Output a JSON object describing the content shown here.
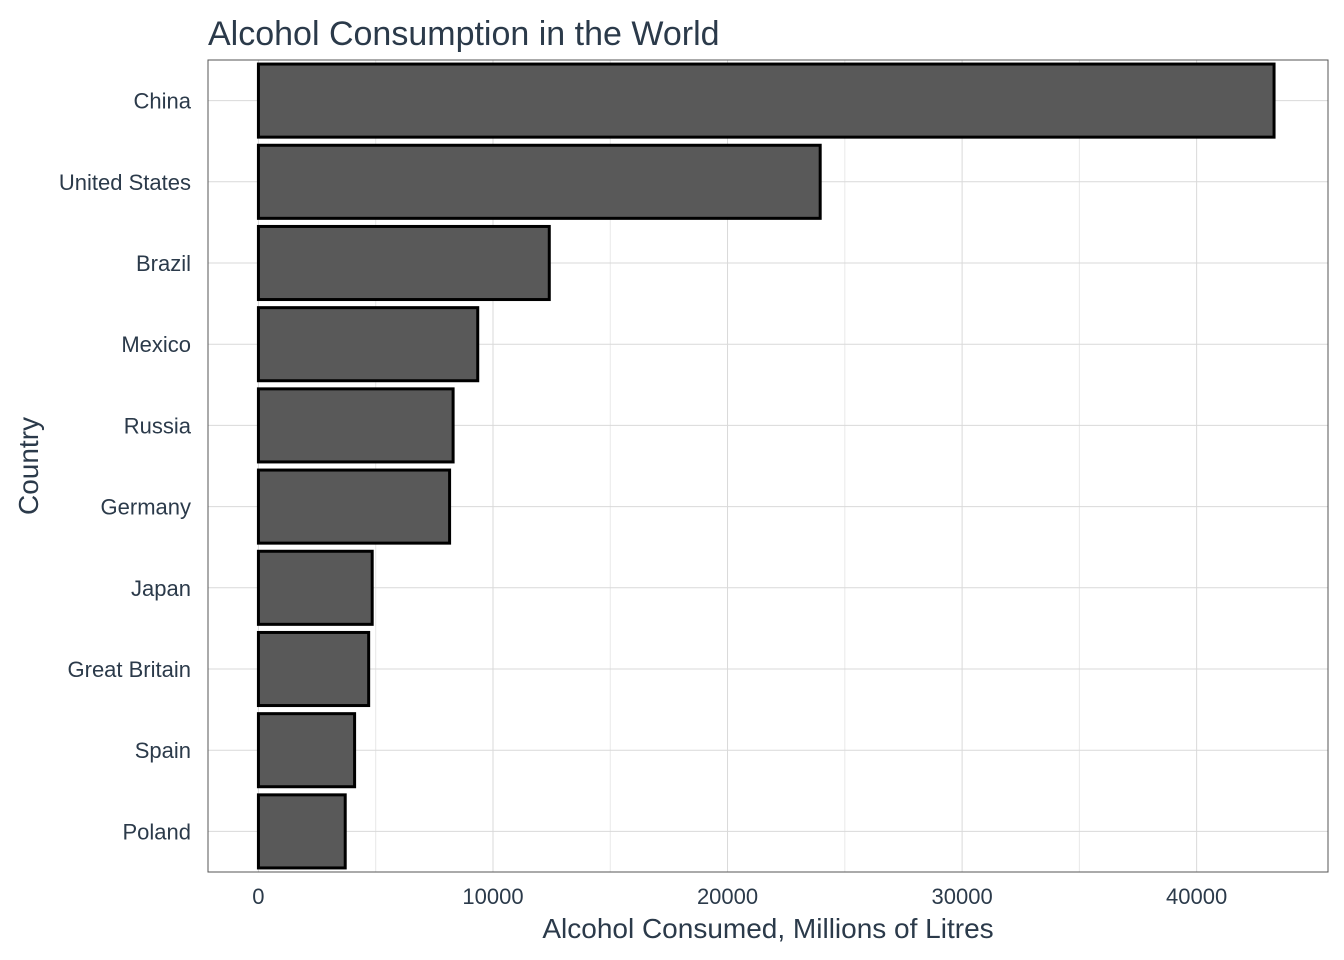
{
  "chart_data": {
    "type": "bar",
    "orientation": "horizontal",
    "title": "Alcohol Consumption in the World",
    "xlabel": "Alcohol Consumed, Millions of Litres",
    "ylabel": "Country",
    "categories": [
      "China",
      "United States",
      "Brazil",
      "Mexico",
      "Russia",
      "Germany",
      "Japan",
      "Great Britain",
      "Spain",
      "Poland"
    ],
    "values": [
      43300,
      23950,
      12400,
      9350,
      8300,
      8150,
      4850,
      4700,
      4100,
      3700
    ],
    "xlim": [
      -2150,
      45600
    ],
    "xticks": [
      0,
      10000,
      20000,
      30000,
      40000
    ],
    "xtick_labels": [
      "0",
      "10000",
      "20000",
      "30000",
      "40000"
    ],
    "grid": true,
    "legend": "none",
    "colors": {
      "bar_fill": "#595959",
      "bar_stroke": "#000000",
      "text": "#2b3a4a",
      "grid": "#d9d9d9"
    }
  }
}
